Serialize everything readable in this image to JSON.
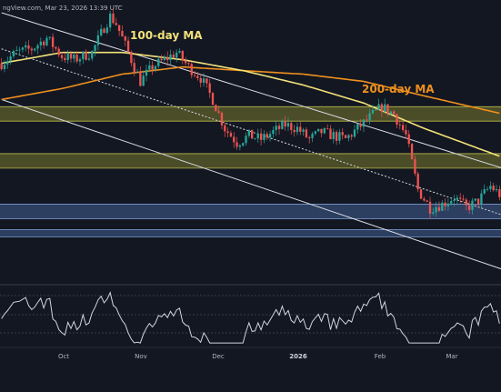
{
  "header": {
    "watermark": "ngView.com, Mar 23, 2026 13:39 UTC"
  },
  "colors": {
    "background": "#131722",
    "bull": "#26a69a",
    "bear": "#ef5350",
    "ma100": "#f3e27a",
    "ma200": "#f0901d",
    "resistance_zone": "#7a7a2e",
    "support_zone": "#3f5a8a",
    "channel": "#d9dce3",
    "rsi": "#d1d4dc"
  },
  "chart_data": {
    "type": "candlestick",
    "x_axis": {
      "tick_labels": [
        "Oct",
        "Nov",
        "Dec",
        "2026",
        "Feb",
        "Mar"
      ],
      "bold_ticks": [
        "2026"
      ]
    },
    "annotations": [
      {
        "label": "100-day MA",
        "series": "ma100"
      },
      {
        "label": "200-day MA",
        "series": "ma200"
      }
    ],
    "price_range": [
      57,
      132
    ],
    "rsi_range": [
      20,
      85
    ],
    "candle_count": 166,
    "candle_start_day": 0,
    "anchors": [
      [
        0,
        118
      ],
      [
        5,
        121
      ],
      [
        10,
        122
      ],
      [
        15,
        125
      ],
      [
        20,
        120
      ],
      [
        24,
        119
      ],
      [
        30,
        121
      ],
      [
        34,
        128
      ],
      [
        36,
        131
      ],
      [
        38,
        129
      ],
      [
        42,
        121
      ],
      [
        46,
        113
      ],
      [
        50,
        117
      ],
      [
        54,
        119
      ],
      [
        58,
        121
      ],
      [
        62,
        117
      ],
      [
        66,
        114
      ],
      [
        70,
        108
      ],
      [
        74,
        100
      ],
      [
        78,
        96
      ],
      [
        82,
        98
      ],
      [
        86,
        97
      ],
      [
        90,
        99
      ],
      [
        94,
        101
      ],
      [
        98,
        100
      ],
      [
        102,
        97
      ],
      [
        106,
        99
      ],
      [
        110,
        98
      ],
      [
        114,
        97
      ],
      [
        118,
        100
      ],
      [
        122,
        103
      ],
      [
        126,
        106
      ],
      [
        130,
        104
      ],
      [
        134,
        98
      ],
      [
        138,
        83
      ],
      [
        142,
        78
      ],
      [
        146,
        79
      ],
      [
        150,
        81
      ],
      [
        154,
        78
      ],
      [
        158,
        80
      ],
      [
        162,
        84
      ],
      [
        166,
        81
      ]
    ],
    "ma100_anchors": [
      [
        0,
        118
      ],
      [
        20,
        121
      ],
      [
        40,
        121
      ],
      [
        60,
        119
      ],
      [
        80,
        116
      ],
      [
        100,
        112
      ],
      [
        120,
        107
      ],
      [
        140,
        100
      ],
      [
        166,
        92
      ]
    ],
    "ma200_anchors": [
      [
        0,
        108
      ],
      [
        20,
        111
      ],
      [
        40,
        115
      ],
      [
        60,
        117
      ],
      [
        80,
        116
      ],
      [
        100,
        115
      ],
      [
        120,
        113
      ],
      [
        140,
        109
      ],
      [
        166,
        104
      ]
    ],
    "resistance_zones": [
      [
        102,
        106
      ],
      [
        89,
        93
      ]
    ],
    "support_zones": [
      [
        75,
        79
      ],
      [
        70,
        72
      ]
    ],
    "channel_upper": [
      [
        0,
        132
      ],
      [
        166,
        89
      ]
    ],
    "channel_mid": [
      [
        0,
        122
      ],
      [
        166,
        76
      ]
    ],
    "channel_lower": [
      [
        0,
        108
      ],
      [
        166,
        61
      ]
    ]
  }
}
